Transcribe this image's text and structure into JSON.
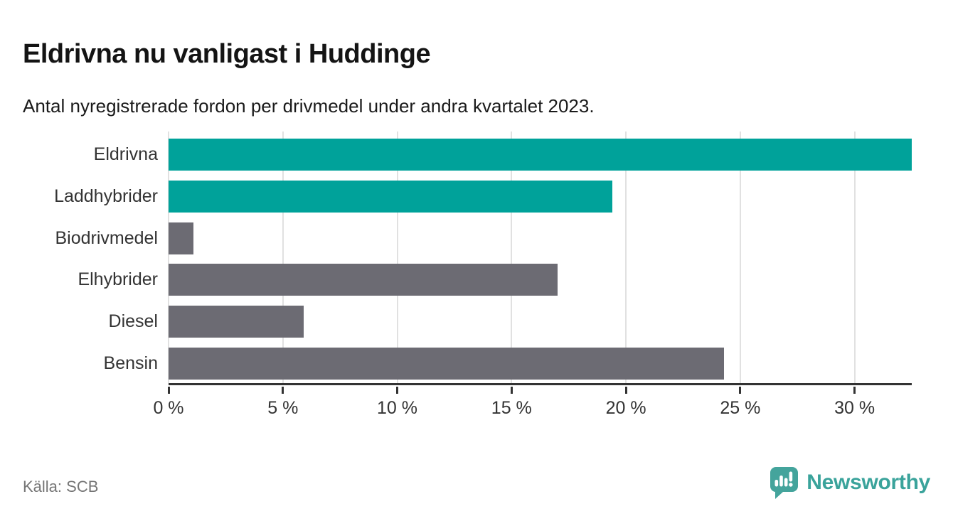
{
  "header": {
    "title": "Eldrivna nu vanligast i Huddinge",
    "subtitle": "Antal nyregistrerade fordon per drivmedel under andra kvartalet 2023."
  },
  "chart_data": {
    "type": "bar",
    "orientation": "horizontal",
    "categories": [
      "Eldrivna",
      "Laddhybrider",
      "Biodrivmedel",
      "Elhybrider",
      "Diesel",
      "Bensin"
    ],
    "values": [
      32.5,
      19.4,
      1.1,
      17.0,
      5.9,
      24.3
    ],
    "unit": "%",
    "title": "Eldrivna nu vanligast i Huddinge",
    "xlabel": "",
    "ylabel": "",
    "xlim": [
      0,
      32.5
    ],
    "xticks": [
      0,
      5,
      10,
      15,
      20,
      25,
      30
    ],
    "xtick_format": "{v} %",
    "grid": true,
    "legend": "none",
    "highlighted": [
      "Eldrivna",
      "Laddhybrider"
    ],
    "highlight_color": "#00a29a",
    "bar_color": "#6c6b73",
    "note": "Eldrivna bar is clipped at the right edge of the plot area"
  },
  "footer": {
    "source": "Källa: SCB",
    "brand": "Newsworthy",
    "logo_icon": "bar-chart-badge-icon"
  },
  "colors": {
    "accent_teal": "#00a29a",
    "neutral_gray": "#6c6b73",
    "axis": "#333333",
    "gridline": "#e1e1e1",
    "logo_teal": "#3aa39b",
    "source_text": "#757575"
  }
}
